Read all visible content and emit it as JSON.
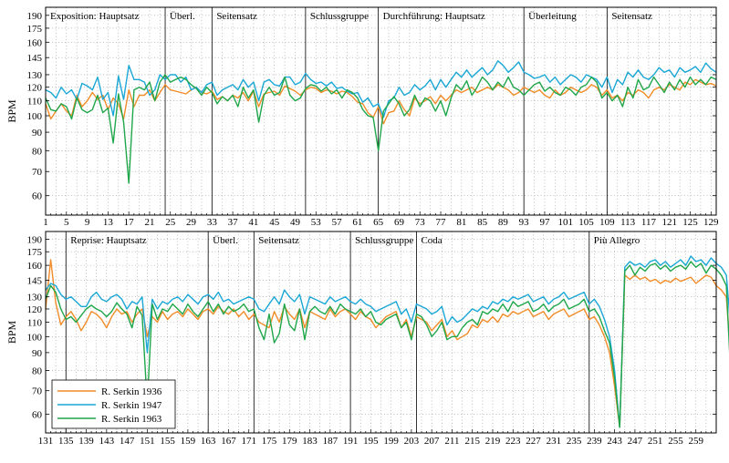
{
  "colors": {
    "serkin_1936": "#f28c28",
    "serkin_1947": "#1aa7d6",
    "serkin_1963": "#1fa64a"
  },
  "chart_data": [
    {
      "type": "line",
      "ylabel": "BPM",
      "xlabel": "",
      "y_scale": "log",
      "ylim": [
        53,
        200
      ],
      "xlim": [
        1,
        130
      ],
      "x_ticks": [
        1,
        5,
        9,
        13,
        17,
        21,
        25,
        29,
        33,
        37,
        41,
        45,
        49,
        53,
        57,
        61,
        65,
        69,
        73,
        77,
        81,
        85,
        89,
        93,
        97,
        101,
        105,
        109,
        113,
        117,
        121,
        125,
        129
      ],
      "y_ticks": [
        60,
        70,
        80,
        90,
        100,
        110,
        120,
        130,
        145,
        160,
        175,
        190
      ],
      "grid": true,
      "sections": [
        {
          "label": "Exposition: Hauptsatz",
          "start": 1
        },
        {
          "label": "Überl.",
          "start": 24
        },
        {
          "label": "Seitensatz",
          "start": 33
        },
        {
          "label": "Schlussgruppe",
          "start": 51
        },
        {
          "label": "Durchführung: Hauptsatz",
          "start": 65
        },
        {
          "label": "Überleitung",
          "start": 93
        },
        {
          "label": "Seitensatz",
          "start": 109
        }
      ],
      "series": [
        {
          "name": "R. Serkin 1936",
          "x_start": 1,
          "values": [
            108,
            98,
            103,
            108,
            103,
            100,
            114,
            106,
            110,
            116,
            111,
            114,
            104,
            112,
            108,
            98,
            118,
            106,
            114,
            114,
            118,
            110,
            116,
            122,
            118,
            117,
            116,
            115,
            118,
            120,
            116,
            115,
            117,
            111,
            113,
            110,
            114,
            112,
            116,
            110,
            117,
            106,
            115,
            116,
            117,
            114,
            121,
            119,
            117,
            114,
            118,
            120,
            119,
            116,
            118,
            117,
            115,
            117,
            116,
            113,
            109,
            108,
            102,
            99,
            106,
            95,
            102,
            103,
            110,
            104,
            100,
            112,
            108,
            110,
            113,
            108,
            114,
            110,
            114,
            118,
            116,
            118,
            120,
            116,
            118,
            120,
            118,
            122,
            120,
            118,
            114,
            116,
            120,
            118,
            116,
            118,
            114,
            112,
            118,
            114,
            116,
            120,
            118,
            116,
            118,
            122,
            120,
            114,
            118,
            112,
            114,
            110,
            116,
            114,
            118,
            116,
            112,
            118,
            120,
            118,
            122,
            120,
            118,
            124,
            122,
            126,
            124,
            122,
            123,
            121
          ]
        },
        {
          "name": "R. Serkin 1947",
          "x_start": 1,
          "values": [
            118,
            116,
            112,
            120,
            115,
            118,
            111,
            123,
            121,
            118,
            128,
            111,
            116,
            100,
            129,
            111,
            138,
            126,
            126,
            124,
            114,
            118,
            130,
            126,
            130,
            130,
            124,
            128,
            118,
            120,
            116,
            122,
            124,
            114,
            118,
            120,
            122,
            118,
            126,
            120,
            124,
            110,
            124,
            126,
            122,
            121,
            128,
            128,
            122,
            124,
            131,
            126,
            123,
            124,
            121,
            124,
            119,
            120,
            117,
            115,
            116,
            109,
            112,
            106,
            108,
            99,
            110,
            112,
            120,
            114,
            116,
            122,
            118,
            121,
            126,
            118,
            126,
            120,
            126,
            132,
            128,
            134,
            128,
            132,
            136,
            130,
            134,
            142,
            138,
            132,
            136,
            141,
            132,
            130,
            127,
            128,
            130,
            124,
            128,
            122,
            126,
            130,
            128,
            124,
            130,
            128,
            126,
            120,
            128,
            116,
            126,
            122,
            132,
            128,
            134,
            128,
            126,
            130,
            136,
            132,
            134,
            128,
            136,
            132,
            134,
            137,
            132,
            140,
            135,
            132
          ]
        },
        {
          "name": "R. Serkin 1963",
          "x_start": 1,
          "values": [
            112,
            104,
            103,
            108,
            106,
            98,
            112,
            104,
            102,
            104,
            114,
            102,
            105,
            84,
            115,
            96,
            65,
            118,
            120,
            118,
            124,
            110,
            124,
            130,
            124,
            126,
            128,
            126,
            122,
            119,
            114,
            120,
            116,
            108,
            113,
            110,
            114,
            106,
            120,
            112,
            118,
            96,
            114,
            120,
            114,
            116,
            128,
            114,
            110,
            112,
            119,
            122,
            121,
            117,
            120,
            115,
            118,
            112,
            118,
            116,
            112,
            104,
            100,
            99,
            80,
            103,
            108,
            113,
            108,
            100,
            104,
            114,
            106,
            112,
            110,
            103,
            110,
            100,
            112,
            122,
            118,
            125,
            114,
            120,
            128,
            124,
            118,
            124,
            120,
            128,
            120,
            118,
            114,
            118,
            122,
            124,
            117,
            120,
            116,
            114,
            120,
            118,
            114,
            120,
            122,
            128,
            124,
            112,
            116,
            110,
            114,
            106,
            120,
            112,
            126,
            118,
            120,
            128,
            122,
            116,
            124,
            118,
            126,
            120,
            128,
            122,
            126,
            122,
            128,
            126
          ]
        }
      ]
    },
    {
      "type": "line",
      "ylabel": "BPM",
      "xlabel": "",
      "y_scale": "log",
      "ylim": [
        53,
        200
      ],
      "xlim": [
        131,
        263
      ],
      "x_ticks": [
        131,
        135,
        139,
        143,
        147,
        151,
        155,
        159,
        163,
        167,
        171,
        175,
        179,
        183,
        187,
        191,
        195,
        199,
        203,
        207,
        211,
        215,
        219,
        223,
        227,
        231,
        235,
        239,
        243,
        247,
        251,
        255,
        259
      ],
      "y_ticks": [
        60,
        70,
        80,
        90,
        100,
        110,
        120,
        130,
        145,
        160,
        175,
        190
      ],
      "grid": true,
      "sections": [
        {
          "label": "Reprise: Hauptsatz",
          "start": 135
        },
        {
          "label": "Überl.",
          "start": 163
        },
        {
          "label": "Seitensatz",
          "start": 172
        },
        {
          "label": "Schlussgruppe",
          "start": 191
        },
        {
          "label": "Coda",
          "start": 204
        },
        {
          "label": "Più Allegro",
          "start": 238
        }
      ],
      "legend": {
        "placement": "bottom-left",
        "entries": [
          "R. Serkin 1936",
          "R. Serkin 1947",
          "R. Serkin 1963"
        ]
      },
      "series": [
        {
          "name": "R. Serkin 1936",
          "x_start": 131,
          "values": [
            120,
            166,
            125,
            108,
            114,
            118,
            112,
            104,
            110,
            118,
            116,
            112,
            106,
            114,
            120,
            116,
            118,
            110,
            116,
            120,
            100,
            114,
            110,
            118,
            112,
            116,
            118,
            114,
            120,
            116,
            112,
            118,
            120,
            116,
            122,
            118,
            116,
            120,
            114,
            118,
            112,
            116,
            110,
            108,
            106,
            118,
            110,
            122,
            116,
            112,
            120,
            106,
            118,
            116,
            114,
            112,
            120,
            114,
            118,
            120,
            116,
            112,
            118,
            114,
            112,
            106,
            110,
            114,
            116,
            118,
            106,
            112,
            100,
            114,
            112,
            110,
            104,
            108,
            112,
            100,
            104,
            98,
            100,
            102,
            108,
            106,
            112,
            110,
            114,
            110,
            116,
            114,
            118,
            116,
            118,
            120,
            114,
            116,
            118,
            112,
            116,
            118,
            120,
            114,
            116,
            118,
            120,
            112,
            114,
            108,
            100,
            90,
            72,
            55,
            150,
            146,
            150,
            146,
            148,
            144,
            146,
            142,
            145,
            143,
            147,
            144,
            146,
            148,
            142,
            146,
            150,
            148,
            140,
            136,
            130,
            80
          ]
        },
        {
          "name": "R. Serkin 1947",
          "x_start": 131,
          "values": [
            136,
            142,
            140,
            132,
            128,
            130,
            126,
            122,
            122,
            130,
            134,
            128,
            126,
            130,
            132,
            128,
            120,
            126,
            124,
            130,
            90,
            128,
            120,
            126,
            124,
            128,
            130,
            126,
            132,
            128,
            124,
            130,
            132,
            128,
            134,
            126,
            128,
            124,
            126,
            128,
            130,
            128,
            120,
            118,
            124,
            130,
            124,
            136,
            130,
            126,
            132,
            116,
            130,
            128,
            126,
            124,
            130,
            126,
            128,
            130,
            126,
            124,
            128,
            124,
            122,
            118,
            120,
            122,
            124,
            126,
            116,
            120,
            110,
            124,
            122,
            120,
            116,
            118,
            122,
            108,
            114,
            110,
            112,
            116,
            120,
            118,
            122,
            120,
            126,
            124,
            128,
            126,
            130,
            128,
            130,
            132,
            126,
            128,
            130,
            124,
            128,
            130,
            134,
            128,
            130,
            132,
            134,
            124,
            128,
            122,
            112,
            100,
            80,
            55,
            158,
            164,
            160,
            162,
            158,
            164,
            166,
            160,
            164,
            158,
            162,
            166,
            160,
            170,
            164,
            166,
            160,
            168,
            162,
            158,
            150,
            100
          ]
        },
        {
          "name": "R. Serkin 1963",
          "x_start": 131,
          "values": [
            128,
            140,
            134,
            120,
            112,
            114,
            110,
            115,
            120,
            123,
            120,
            118,
            114,
            118,
            125,
            120,
            116,
            106,
            122,
            115,
            64,
            124,
            112,
            120,
            118,
            124,
            120,
            116,
            124,
            118,
            114,
            120,
            126,
            118,
            124,
            116,
            122,
            118,
            120,
            124,
            118,
            120,
            106,
            98,
            116,
            96,
            102,
            124,
            108,
            104,
            120,
            98,
            118,
            122,
            118,
            116,
            122,
            116,
            124,
            120,
            118,
            116,
            120,
            114,
            118,
            110,
            108,
            112,
            114,
            116,
            106,
            110,
            98,
            116,
            114,
            108,
            100,
            104,
            110,
            98,
            100,
            100,
            106,
            110,
            112,
            108,
            118,
            116,
            120,
            118,
            124,
            118,
            126,
            122,
            124,
            126,
            118,
            120,
            124,
            118,
            122,
            124,
            128,
            120,
            122,
            124,
            128,
            118,
            120,
            114,
            104,
            96,
            76,
            55,
            154,
            160,
            150,
            158,
            154,
            160,
            162,
            156,
            160,
            154,
            158,
            160,
            156,
            164,
            158,
            162,
            152,
            160,
            156,
            150,
            140,
            70
          ]
        }
      ]
    }
  ]
}
